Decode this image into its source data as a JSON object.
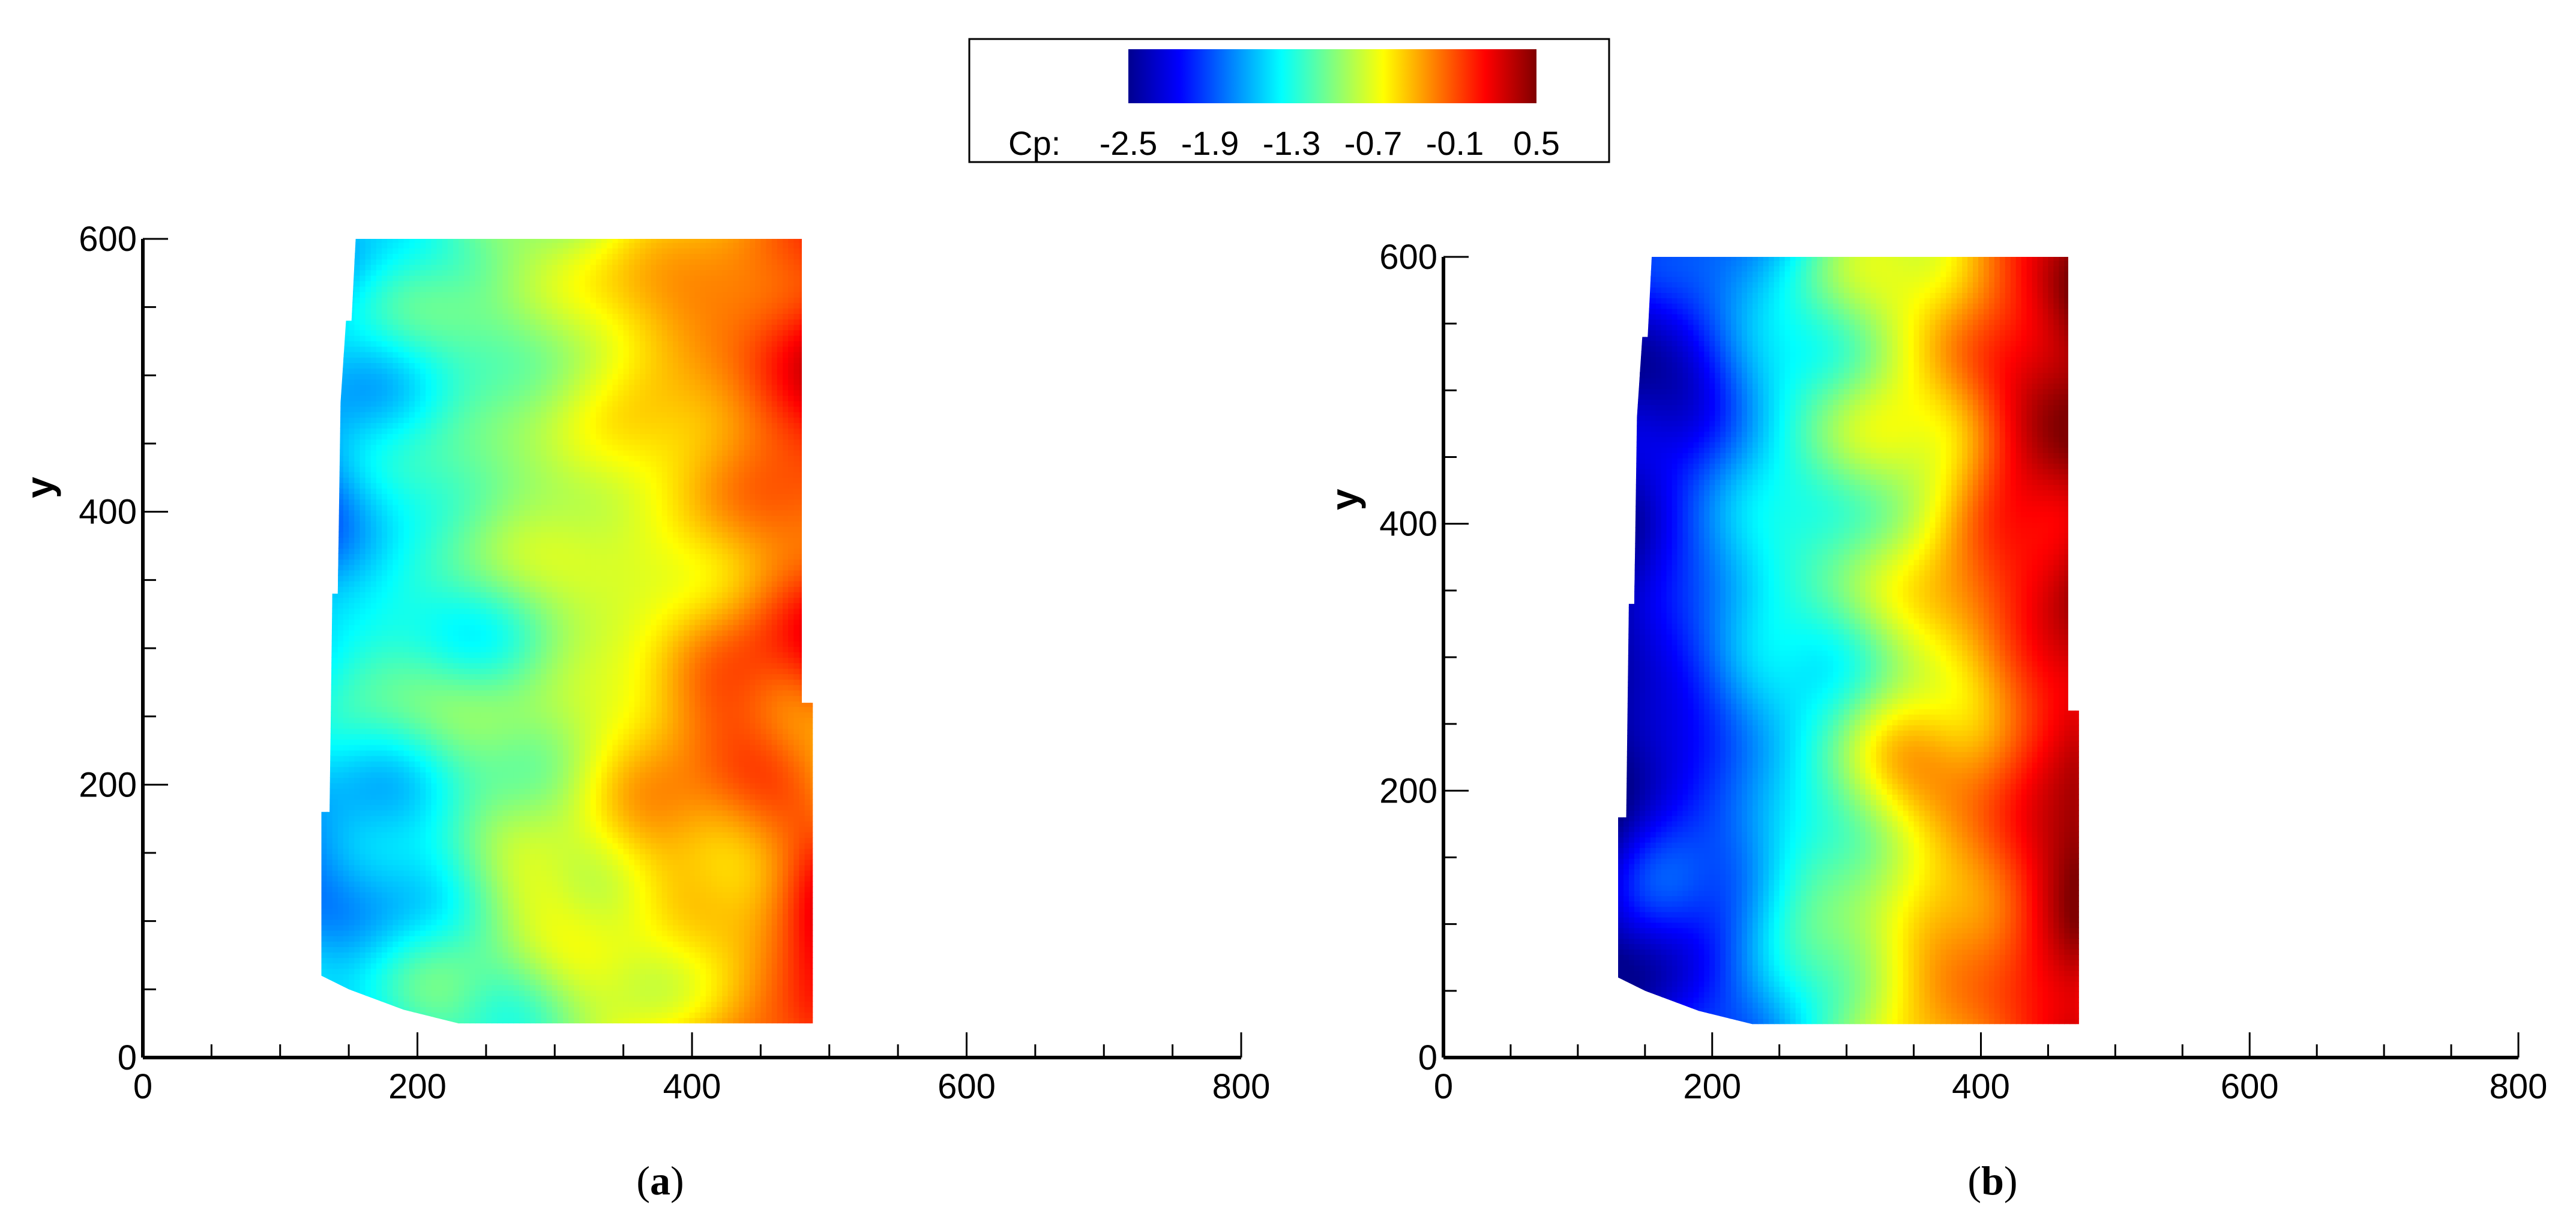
{
  "colorbar": {
    "label": "Cp:",
    "ticks": [
      "-2.5",
      "-1.9",
      "-1.3",
      "-0.7",
      "-0.1",
      "0.5"
    ],
    "range": [
      -2.5,
      0.5
    ],
    "colormap": [
      "#00008f",
      "#0000ff",
      "#0080ff",
      "#00ffff",
      "#80ff80",
      "#ffff00",
      "#ff8000",
      "#ff0000",
      "#800000"
    ]
  },
  "chart_data": [
    {
      "type": "heatmap",
      "panel": "a",
      "caption_open": "(",
      "caption_letter": "a",
      "caption_close": ")",
      "ylabel": "y",
      "xlim": [
        0,
        800
      ],
      "ylim": [
        0,
        600
      ],
      "xticks": [
        "0",
        "200",
        "400",
        "600",
        "800"
      ],
      "yticks": [
        "0",
        "200",
        "400",
        "600"
      ],
      "field_extent_x": [
        130,
        480
      ],
      "field_extent_y": [
        25,
        600
      ],
      "cp_left_edge": -1.6,
      "cp_right_edge": -0.05,
      "seed": 7
    },
    {
      "type": "heatmap",
      "panel": "b",
      "caption_open": "(",
      "caption_letter": "b",
      "caption_close": ")",
      "ylabel": "y",
      "xlim": [
        0,
        800
      ],
      "ylim": [
        0,
        600
      ],
      "xticks": [
        "0",
        "200",
        "400",
        "600",
        "800"
      ],
      "yticks": [
        "0",
        "200",
        "400",
        "600"
      ],
      "field_extent_x": [
        130,
        465
      ],
      "field_extent_y": [
        25,
        600
      ],
      "cp_left_edge": -2.45,
      "cp_right_edge": 0.35,
      "seed": 19
    }
  ]
}
